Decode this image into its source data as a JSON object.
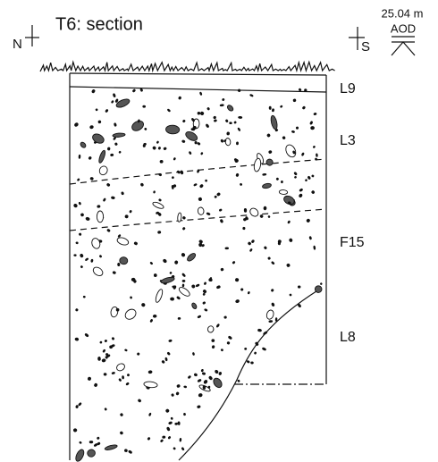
{
  "header": {
    "title": "T6: section",
    "north": "N",
    "south": "S",
    "level": "25.04 m",
    "datum": "AOD"
  },
  "layers": [
    {
      "label": "L9"
    },
    {
      "label": "L3"
    },
    {
      "label": "F15"
    },
    {
      "label": "L8"
    }
  ]
}
